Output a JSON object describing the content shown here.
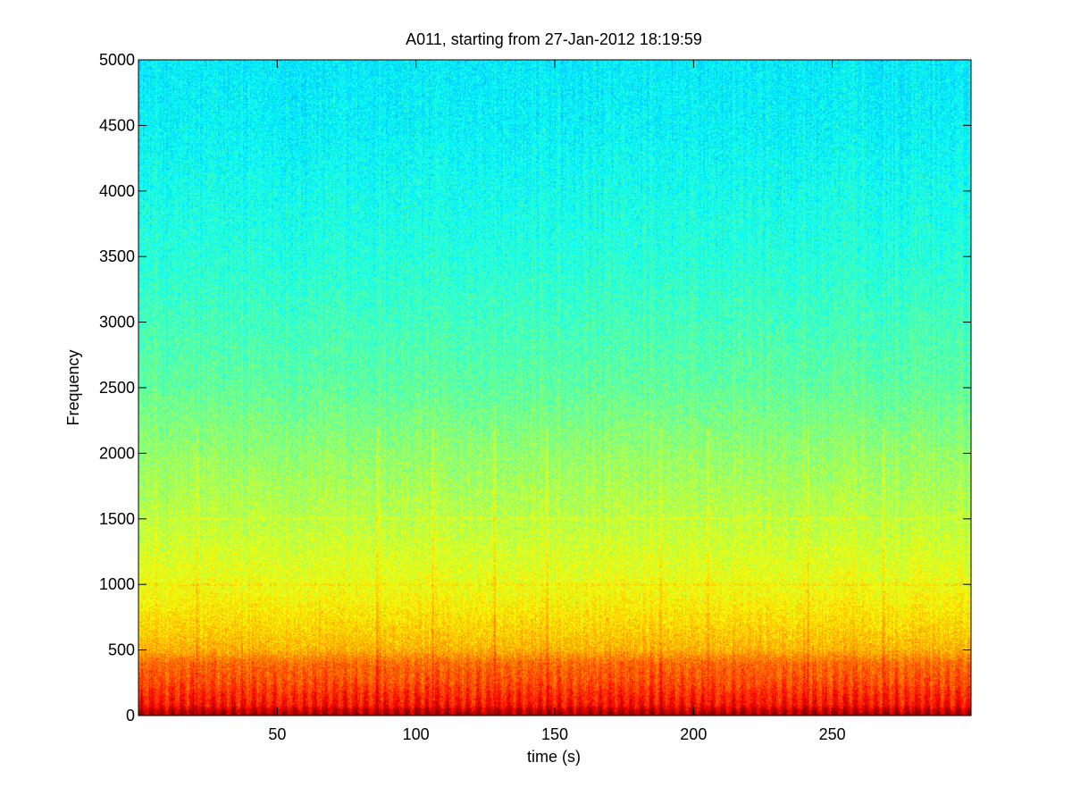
{
  "chart_data": {
    "type": "heatmap",
    "subtype": "spectrogram",
    "title": "A011, starting from 27-Jan-2012 18:19:59",
    "xlabel": "time (s)",
    "ylabel": "Frequency",
    "xlim": [
      0,
      300
    ],
    "ylim": [
      0,
      5000
    ],
    "xticks": [
      50,
      100,
      150,
      200,
      250
    ],
    "yticks": [
      0,
      500,
      1000,
      1500,
      2000,
      2500,
      3000,
      3500,
      4000,
      4500,
      5000
    ],
    "grid": false,
    "colormap": "jet",
    "intensity_profile": {
      "frequency": [
        0,
        40,
        80,
        150,
        250,
        400,
        500,
        700,
        1000,
        1500,
        2000,
        2500,
        3000,
        3500,
        4000,
        4500,
        5000
      ],
      "level": [
        0.97,
        0.93,
        0.86,
        0.84,
        0.8,
        0.77,
        0.7,
        0.66,
        0.61,
        0.56,
        0.52,
        0.47,
        0.44,
        0.41,
        0.39,
        0.37,
        0.36
      ]
    },
    "spectral_lines_hz": [
      1500,
      1000
    ],
    "transient_events_s": [
      21,
      86,
      106,
      128,
      147,
      188,
      205,
      241,
      268
    ]
  },
  "colors": {
    "background": "#ffffff",
    "axes": "#000000",
    "text": "#000000"
  }
}
